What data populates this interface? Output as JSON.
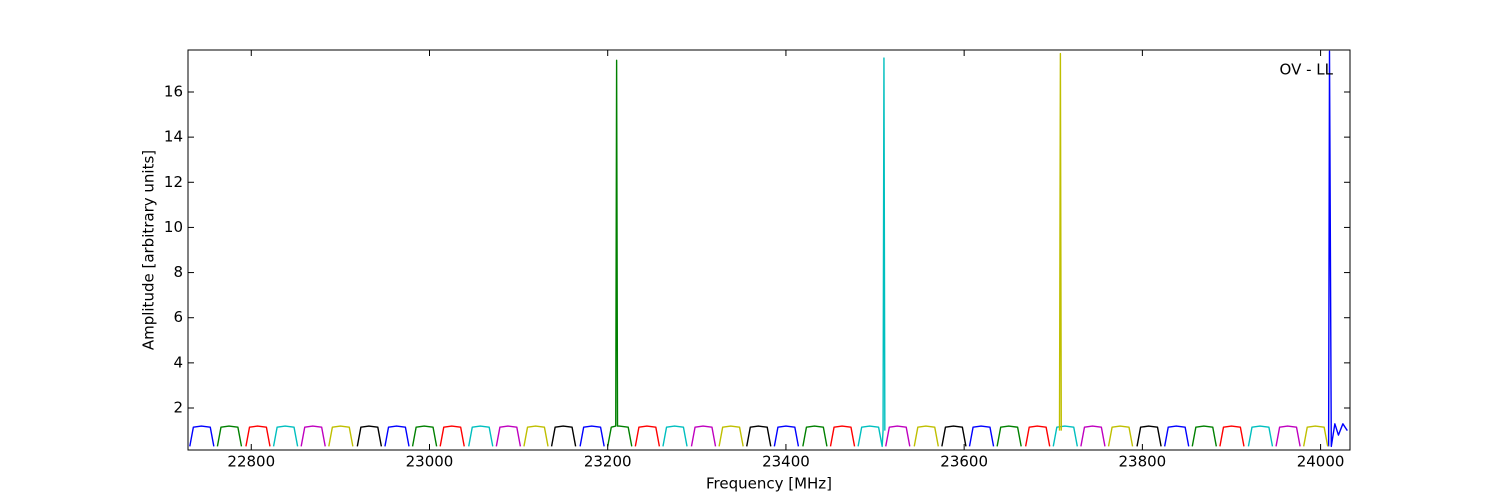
{
  "chart_data": {
    "type": "line",
    "xlabel": "Frequency [MHz]",
    "ylabel": "Amplitude [arbitrary units]",
    "annotation": "OV - LL",
    "xlim": [
      22729,
      24033
    ],
    "ylim": [
      0.14,
      17.86
    ],
    "xticks": [
      22800,
      23000,
      23200,
      23400,
      23600,
      23800,
      24000
    ],
    "yticks": [
      2,
      4,
      6,
      8,
      10,
      12,
      14,
      16
    ],
    "grid": false,
    "series": [
      {
        "color": "#0000ff",
        "x": [
          22731,
          22735,
          22744,
          22754,
          22758,
          null,
          22950,
          22954,
          22963,
          22973,
          22977,
          null,
          23169,
          23173,
          23182,
          23192,
          23196,
          null,
          23387,
          23391,
          23400,
          23410,
          23414,
          null,
          23606,
          23610,
          23619,
          23629,
          23633,
          null,
          23825,
          23829,
          23838,
          23848,
          23852,
          null,
          24009,
          24010,
          24012,
          24016,
          24020,
          24025,
          24030
        ],
        "values": [
          0.3,
          1.15,
          1.2,
          1.15,
          0.3,
          null,
          0.3,
          1.15,
          1.2,
          1.15,
          0.3,
          null,
          0.3,
          1.15,
          1.2,
          1.15,
          0.3,
          null,
          0.3,
          1.15,
          1.2,
          1.15,
          0.3,
          null,
          0.3,
          1.15,
          1.2,
          1.15,
          0.3,
          null,
          0.3,
          1.15,
          1.2,
          1.15,
          0.3,
          null,
          0.3,
          17.8,
          0.3,
          1.3,
          0.8,
          1.3,
          1.0
        ]
      },
      {
        "color": "#008000",
        "x": [
          22762,
          22766,
          22775,
          22785,
          22789,
          null,
          22981,
          22985,
          22994,
          23004,
          23008,
          null,
          23200,
          23204,
          23209,
          23210,
          23211,
          23213,
          23223,
          23227,
          null,
          23419,
          23423,
          23432,
          23442,
          23446,
          null,
          23637,
          23641,
          23650,
          23660,
          23664,
          null,
          23856,
          23860,
          23869,
          23879,
          23883
        ],
        "values": [
          0.3,
          1.15,
          1.2,
          1.15,
          0.3,
          null,
          0.3,
          1.15,
          1.2,
          1.15,
          0.3,
          null,
          0.3,
          1.15,
          1.2,
          17.4,
          1.2,
          1.2,
          1.15,
          0.3,
          null,
          0.3,
          1.15,
          1.2,
          1.15,
          0.3,
          null,
          0.3,
          1.15,
          1.2,
          1.15,
          0.3,
          null,
          0.3,
          1.15,
          1.2,
          1.15,
          0.3
        ]
      },
      {
        "color": "#ff0000",
        "x": [
          22794,
          22798,
          22807,
          22817,
          22821,
          null,
          23012,
          23016,
          23025,
          23035,
          23039,
          null,
          23231,
          23235,
          23244,
          23254,
          23258,
          null,
          23450,
          23454,
          23463,
          23473,
          23477,
          null,
          23669,
          23673,
          23682,
          23692,
          23696,
          null,
          23887,
          23891,
          23900,
          23910,
          23914
        ],
        "values": [
          0.3,
          1.15,
          1.2,
          1.15,
          0.3,
          null,
          0.3,
          1.15,
          1.2,
          1.15,
          0.3,
          null,
          0.3,
          1.15,
          1.2,
          1.15,
          0.3,
          null,
          0.3,
          1.15,
          1.2,
          1.15,
          0.3,
          null,
          0.3,
          1.15,
          1.2,
          1.15,
          0.3,
          null,
          0.3,
          1.15,
          1.2,
          1.15,
          0.3
        ]
      },
      {
        "color": "#00bfbf",
        "x": [
          22825,
          22829,
          22838,
          22848,
          22852,
          null,
          23044,
          23048,
          23057,
          23067,
          23071,
          null,
          23262,
          23266,
          23275,
          23285,
          23289,
          null,
          23481,
          23485,
          23494,
          23504,
          23508,
          23509,
          23510,
          23511,
          null,
          23700,
          23704,
          23713,
          23723,
          23727,
          null,
          23919,
          23923,
          23932,
          23942,
          23946
        ],
        "values": [
          0.3,
          1.15,
          1.2,
          1.15,
          0.3,
          null,
          0.3,
          1.15,
          1.2,
          1.15,
          0.3,
          null,
          0.3,
          1.15,
          1.2,
          1.15,
          0.3,
          null,
          0.3,
          1.15,
          1.2,
          1.15,
          0.3,
          1.0,
          17.5,
          1.0,
          null,
          0.3,
          1.15,
          1.2,
          1.15,
          0.3,
          null,
          0.3,
          1.15,
          1.2,
          1.15,
          0.3
        ]
      },
      {
        "color": "#bf00bf",
        "x": [
          22856,
          22860,
          22869,
          22879,
          22883,
          null,
          23075,
          23079,
          23088,
          23098,
          23102,
          null,
          23294,
          23298,
          23307,
          23317,
          23321,
          null,
          23512,
          23516,
          23525,
          23535,
          23539,
          null,
          23731,
          23735,
          23744,
          23754,
          23758,
          null,
          23950,
          23954,
          23963,
          23973,
          23977
        ],
        "values": [
          0.3,
          1.15,
          1.2,
          1.15,
          0.3,
          null,
          0.3,
          1.15,
          1.2,
          1.15,
          0.3,
          null,
          0.3,
          1.15,
          1.2,
          1.15,
          0.3,
          null,
          0.3,
          1.15,
          1.2,
          1.15,
          0.3,
          null,
          0.3,
          1.15,
          1.2,
          1.15,
          0.3,
          null,
          0.3,
          1.15,
          1.2,
          1.15,
          0.3
        ]
      },
      {
        "color": "#bfbf00",
        "x": [
          22887,
          22891,
          22900,
          22910,
          22914,
          null,
          23106,
          23110,
          23119,
          23129,
          23133,
          null,
          23325,
          23329,
          23338,
          23348,
          23352,
          null,
          23544,
          23548,
          23557,
          23567,
          23571,
          null,
          23707,
          23708,
          23709,
          null,
          23762,
          23766,
          23775,
          23785,
          23789,
          null,
          23981,
          23985,
          23994,
          24004,
          24008
        ],
        "values": [
          0.3,
          1.15,
          1.2,
          1.15,
          0.3,
          null,
          0.3,
          1.15,
          1.2,
          1.15,
          0.3,
          null,
          0.3,
          1.15,
          1.2,
          1.15,
          0.3,
          null,
          0.3,
          1.15,
          1.2,
          1.15,
          0.3,
          null,
          1.0,
          17.7,
          1.0,
          null,
          0.3,
          1.15,
          1.2,
          1.15,
          0.3,
          null,
          0.3,
          1.15,
          1.2,
          1.15,
          0.3
        ]
      },
      {
        "color": "#000000",
        "x": [
          22919,
          22923,
          22932,
          22942,
          22946,
          null,
          23137,
          23141,
          23150,
          23160,
          23164,
          null,
          23356,
          23360,
          23369,
          23379,
          23383,
          null,
          23575,
          23579,
          23588,
          23598,
          23602,
          null,
          23794,
          23798,
          23807,
          23817,
          23821
        ],
        "values": [
          0.3,
          1.15,
          1.2,
          1.15,
          0.3,
          null,
          0.3,
          1.15,
          1.2,
          1.15,
          0.3,
          null,
          0.3,
          1.15,
          1.2,
          1.15,
          0.3,
          null,
          0.3,
          1.15,
          1.2,
          1.15,
          0.3,
          null,
          0.3,
          1.15,
          1.2,
          1.15,
          0.3
        ]
      }
    ]
  }
}
